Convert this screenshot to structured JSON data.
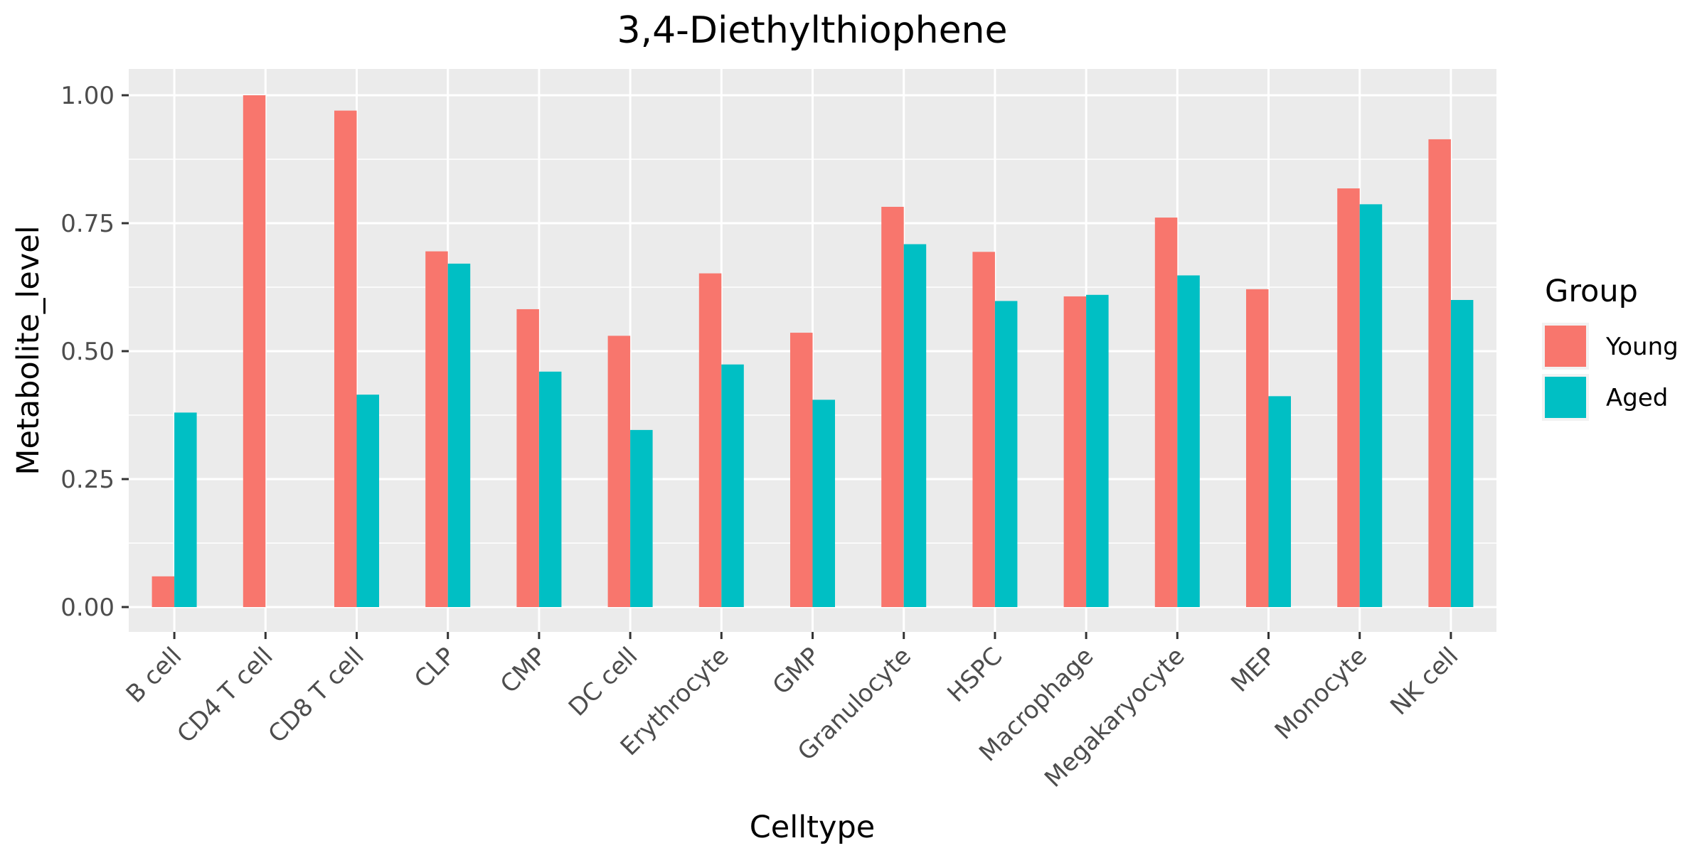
{
  "chart_data": {
    "type": "bar",
    "title": "3,4-Diethylthiophene",
    "xlabel": "Celltype",
    "ylabel": "Metabolite_level",
    "categories": [
      "B cell",
      "CD4 T cell",
      "CD8 T cell",
      "CLP",
      "CMP",
      "DC cell",
      "Erythrocyte",
      "GMP",
      "Granulocyte",
      "HSPC",
      "Macrophage",
      "Megakaryocyte",
      "MEP",
      "Monocyte",
      "NK cell"
    ],
    "series": [
      {
        "name": "Young",
        "color": "#F8766D",
        "values": [
          0.06,
          1.0,
          0.97,
          0.695,
          0.582,
          0.53,
          0.652,
          0.536,
          0.782,
          0.694,
          0.607,
          0.761,
          0.621,
          0.818,
          0.914
        ]
      },
      {
        "name": "Aged",
        "color": "#00BFC4",
        "values": [
          0.38,
          null,
          0.415,
          0.671,
          0.46,
          0.346,
          0.474,
          0.405,
          0.709,
          0.598,
          0.61,
          0.648,
          0.412,
          0.787,
          0.6
        ]
      }
    ],
    "ylim": [
      -0.05,
      1.05
    ],
    "yticks": [
      0.0,
      0.25,
      0.5,
      0.75,
      1.0
    ],
    "ytick_labels": [
      "0.00",
      "0.25",
      "0.50",
      "0.75",
      "1.00"
    ],
    "legend": {
      "title": "Group",
      "position": "right"
    },
    "grid": true,
    "panel_background": "#EBEBEB"
  }
}
